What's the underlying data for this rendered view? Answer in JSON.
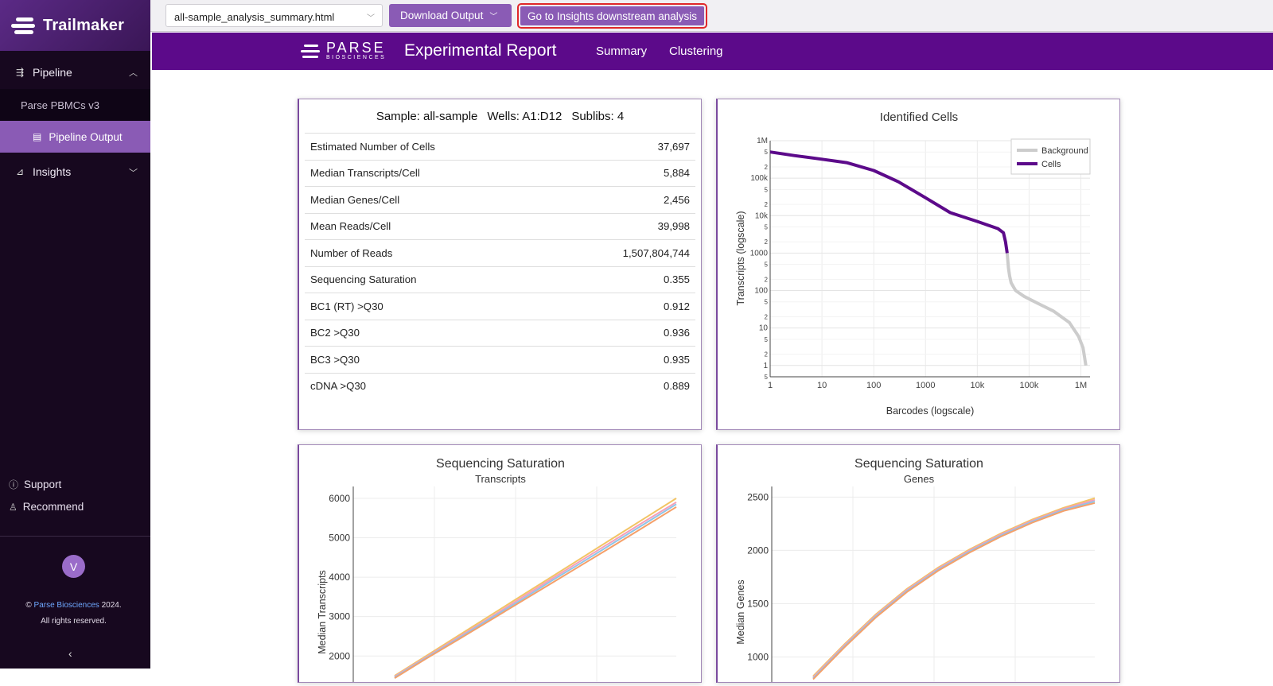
{
  "app": {
    "name": "Trailmaker"
  },
  "sidebar": {
    "pipeline": "Pipeline",
    "project": "Parse PBMCs v3",
    "pipeline_output": "Pipeline Output",
    "insights": "Insights",
    "support": "Support",
    "recommend": "Recommend",
    "avatar": "V",
    "copyright_prefix": "©",
    "copyright_link": "Parse Biosciences",
    "copyright_year": "2024.",
    "rights": "All rights reserved."
  },
  "toolbar": {
    "file": "all-sample_analysis_summary.html",
    "download": "Download Output",
    "insights": "Go to Insights downstream analysis"
  },
  "report": {
    "logo_main": "PARSE",
    "logo_sub": "BIOSCIENCES",
    "title": "Experimental Report",
    "nav": [
      "Summary",
      "Clustering"
    ]
  },
  "summary": {
    "sample": "Sample: all-sample",
    "wells": "Wells: A1:D12",
    "sublibs": "Sublibs: 4",
    "rows": [
      {
        "label": "Estimated Number of Cells",
        "value": "37,697"
      },
      {
        "label": "Median Transcripts/Cell",
        "value": "5,884"
      },
      {
        "label": "Median Genes/Cell",
        "value": "2,456"
      },
      {
        "label": "Mean Reads/Cell",
        "value": "39,998"
      },
      {
        "label": "Number of Reads",
        "value": "1,507,804,744"
      },
      {
        "label": "Sequencing Saturation",
        "value": "0.355"
      },
      {
        "label": "BC1 (RT) >Q30",
        "value": "0.912"
      },
      {
        "label": "BC2 >Q30",
        "value": "0.936"
      },
      {
        "label": "BC3 >Q30",
        "value": "0.935"
      },
      {
        "label": "cDNA >Q30",
        "value": "0.889"
      }
    ]
  },
  "chart_data": [
    {
      "type": "line",
      "title": "Identified Cells",
      "xlabel": "Barcodes (logscale)",
      "ylabel": "Transcripts (logscale)",
      "xscale": "log",
      "yscale": "log",
      "xlim": [
        1,
        1500000
      ],
      "ylim": [
        0.5,
        1000000
      ],
      "x_ticks": [
        "1",
        "10",
        "100",
        "1000",
        "10k",
        "100k",
        "1M"
      ],
      "y_ticks": [
        {
          "v": 1000000,
          "t": "1M"
        },
        {
          "v": 500000,
          "t": "5"
        },
        {
          "v": 200000,
          "t": "2"
        },
        {
          "v": 100000,
          "t": "100k"
        },
        {
          "v": 50000,
          "t": "5"
        },
        {
          "v": 20000,
          "t": "2"
        },
        {
          "v": 10000,
          "t": "10k"
        },
        {
          "v": 5000,
          "t": "5"
        },
        {
          "v": 2000,
          "t": "2"
        },
        {
          "v": 1000,
          "t": "1000"
        },
        {
          "v": 500,
          "t": "5"
        },
        {
          "v": 200,
          "t": "2"
        },
        {
          "v": 100,
          "t": "100"
        },
        {
          "v": 50,
          "t": "5"
        },
        {
          "v": 20,
          "t": "2"
        },
        {
          "v": 10,
          "t": "10"
        },
        {
          "v": 5,
          "t": "5"
        },
        {
          "v": 2,
          "t": "2"
        },
        {
          "v": 1,
          "t": "1"
        },
        {
          "v": 0.5,
          "t": "5"
        }
      ],
      "legend": "top-right",
      "series": [
        {
          "name": "Background",
          "color": "#cccccc",
          "x": [
            37697,
            40000,
            42000,
            45000,
            55000,
            80000,
            150000,
            300000,
            600000,
            900000,
            1100000,
            1250000
          ],
          "y": [
            1000,
            400,
            250,
            160,
            100,
            70,
            45,
            28,
            14,
            6,
            3,
            1
          ]
        },
        {
          "name": "Cells",
          "color": "#5c0a8a",
          "x": [
            1,
            3,
            10,
            30,
            100,
            300,
            1000,
            3000,
            10000,
            25000,
            32000,
            35000,
            37697
          ],
          "y": [
            500000,
            400000,
            320000,
            260000,
            160000,
            80000,
            30000,
            12000,
            7000,
            4500,
            3500,
            2000,
            1000
          ]
        }
      ]
    },
    {
      "type": "line",
      "title": "Sequencing Saturation",
      "subtitle": "Transcripts",
      "ylabel": "Median Transcripts",
      "y_ticks": [
        2000,
        3000,
        4000,
        5000,
        6000
      ],
      "ylim": [
        1300,
        6300
      ],
      "series": [
        {
          "color": "#f2c464",
          "y": [
            1500,
            2000,
            2500,
            3000,
            3500,
            4000,
            4500,
            5000,
            5500,
            6000
          ]
        },
        {
          "color": "#f59fb8",
          "y": [
            1480,
            1970,
            2460,
            2950,
            3450,
            3950,
            4440,
            4930,
            5420,
            5900
          ]
        },
        {
          "color": "#8ec5e8",
          "y": [
            1460,
            1950,
            2430,
            2920,
            3400,
            3900,
            4380,
            4870,
            5360,
            5850
          ]
        },
        {
          "color": "#f5a06a",
          "y": [
            1440,
            1930,
            2400,
            2880,
            3360,
            3840,
            4320,
            4800,
            5290,
            5780
          ]
        }
      ]
    },
    {
      "type": "line",
      "title": "Sequencing Saturation",
      "subtitle": "Genes",
      "ylabel": "Median Genes",
      "y_ticks": [
        1000,
        1500,
        2000,
        2500
      ],
      "ylim": [
        750,
        2600
      ],
      "series": [
        {
          "color": "#f2c464",
          "y": [
            820,
            1120,
            1400,
            1640,
            1840,
            2010,
            2160,
            2290,
            2400,
            2490
          ]
        },
        {
          "color": "#f59fb8",
          "y": [
            810,
            1110,
            1390,
            1630,
            1830,
            2000,
            2150,
            2280,
            2390,
            2475
          ]
        },
        {
          "color": "#8ec5e8",
          "y": [
            800,
            1100,
            1380,
            1620,
            1820,
            1990,
            2140,
            2270,
            2380,
            2460
          ]
        },
        {
          "color": "#f5a06a",
          "y": [
            790,
            1090,
            1370,
            1610,
            1810,
            1980,
            2130,
            2260,
            2370,
            2445
          ]
        }
      ]
    }
  ]
}
